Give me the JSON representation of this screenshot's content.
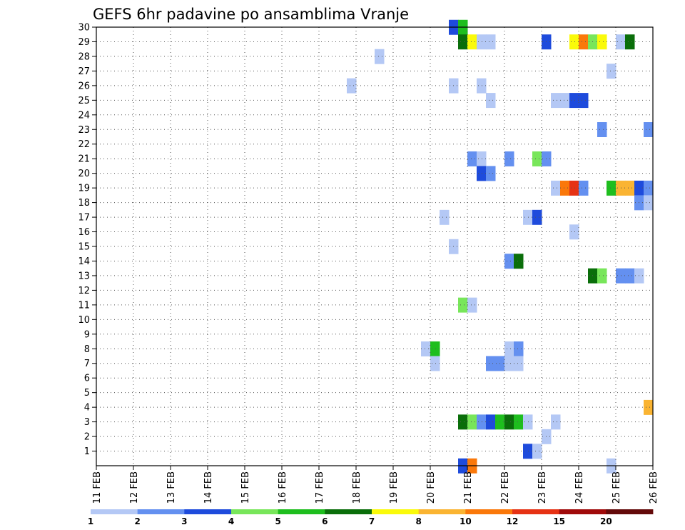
{
  "chart_data": {
    "type": "heatmap",
    "title": "GEFS 6hr padavine po ansamblima Vranje",
    "x_tick_labels": [
      "11 FEB",
      "12 FEB",
      "13 FEB",
      "14 FEB",
      "15 FEB",
      "16 FEB",
      "17 FEB",
      "18 FEB",
      "19 FEB",
      "20 FEB",
      "21 FEB",
      "22 FEB",
      "23 FEB",
      "24 FEB",
      "25 FEB",
      "26 FEB"
    ],
    "y_tick_labels": [
      "1",
      "2",
      "3",
      "4",
      "5",
      "6",
      "7",
      "8",
      "9",
      "10",
      "11",
      "12",
      "13",
      "14",
      "15",
      "16",
      "17",
      "18",
      "19",
      "20",
      "21",
      "22",
      "23",
      "24",
      "25",
      "26",
      "27",
      "28",
      "29",
      "30"
    ],
    "x_range": [
      "11 FEB",
      "26 FEB"
    ],
    "y_range": [
      0,
      30
    ],
    "grid": true,
    "step_hours": 6,
    "legend": {
      "placement": "bottom",
      "labels": [
        "1",
        "2",
        "3",
        "4",
        "5",
        "6",
        "7",
        "8",
        "10",
        "12",
        "15",
        "20"
      ],
      "colors": [
        "#b4c8f5",
        "#6490f0",
        "#1e4bdc",
        "#78e65a",
        "#1ebe1e",
        "#0a6e0a",
        "#fafa0a",
        "#fab432",
        "#fa780a",
        "#e63214",
        "#a00a0a",
        "#640a0a"
      ]
    },
    "cells": [
      {
        "day": 20.5,
        "member": 30,
        "level": 3
      },
      {
        "day": 20.75,
        "member": 30,
        "level": 5
      },
      {
        "day": 20.75,
        "member": 29,
        "level": 6
      },
      {
        "day": 21.0,
        "member": 29,
        "level": 7
      },
      {
        "day": 21.25,
        "member": 29,
        "level": 1
      },
      {
        "day": 21.5,
        "member": 29,
        "level": 1
      },
      {
        "day": 23.0,
        "member": 29,
        "level": 3
      },
      {
        "day": 23.75,
        "member": 29,
        "level": 7
      },
      {
        "day": 24.0,
        "member": 29,
        "level": 9
      },
      {
        "day": 24.25,
        "member": 29,
        "level": 4
      },
      {
        "day": 24.5,
        "member": 29,
        "level": 7
      },
      {
        "day": 25.0,
        "member": 29,
        "level": 1
      },
      {
        "day": 25.25,
        "member": 29,
        "level": 6
      },
      {
        "day": 18.5,
        "member": 28,
        "level": 1
      },
      {
        "day": 24.75,
        "member": 27,
        "level": 1
      },
      {
        "day": 17.75,
        "member": 26,
        "level": 1
      },
      {
        "day": 20.5,
        "member": 26,
        "level": 1
      },
      {
        "day": 21.25,
        "member": 26,
        "level": 1
      },
      {
        "day": 21.5,
        "member": 25,
        "level": 1
      },
      {
        "day": 23.25,
        "member": 25,
        "level": 1
      },
      {
        "day": 23.5,
        "member": 25,
        "level": 1
      },
      {
        "day": 23.75,
        "member": 25,
        "level": 3
      },
      {
        "day": 24.0,
        "member": 25,
        "level": 3
      },
      {
        "day": 24.5,
        "member": 23,
        "level": 2
      },
      {
        "day": 25.75,
        "member": 23,
        "level": 2
      },
      {
        "day": 21.0,
        "member": 21,
        "level": 2
      },
      {
        "day": 21.25,
        "member": 21,
        "level": 1
      },
      {
        "day": 22.0,
        "member": 21,
        "level": 2
      },
      {
        "day": 22.75,
        "member": 21,
        "level": 4
      },
      {
        "day": 23.0,
        "member": 21,
        "level": 2
      },
      {
        "day": 21.25,
        "member": 20,
        "level": 3
      },
      {
        "day": 21.5,
        "member": 20,
        "level": 2
      },
      {
        "day": 23.25,
        "member": 19,
        "level": 1
      },
      {
        "day": 23.5,
        "member": 19,
        "level": 9
      },
      {
        "day": 23.75,
        "member": 19,
        "level": 10
      },
      {
        "day": 24.0,
        "member": 19,
        "level": 2
      },
      {
        "day": 24.75,
        "member": 19,
        "level": 5
      },
      {
        "day": 25.0,
        "member": 19,
        "level": 8
      },
      {
        "day": 25.25,
        "member": 19,
        "level": 8
      },
      {
        "day": 25.5,
        "member": 19,
        "level": 3
      },
      {
        "day": 25.75,
        "member": 19,
        "level": 2
      },
      {
        "day": 25.5,
        "member": 18,
        "level": 2
      },
      {
        "day": 25.75,
        "member": 18,
        "level": 1
      },
      {
        "day": 20.25,
        "member": 17,
        "level": 1
      },
      {
        "day": 22.5,
        "member": 17,
        "level": 1
      },
      {
        "day": 22.75,
        "member": 17,
        "level": 3
      },
      {
        "day": 23.75,
        "member": 16,
        "level": 1
      },
      {
        "day": 20.5,
        "member": 15,
        "level": 1
      },
      {
        "day": 22.0,
        "member": 14,
        "level": 2
      },
      {
        "day": 22.25,
        "member": 14,
        "level": 6
      },
      {
        "day": 24.25,
        "member": 13,
        "level": 6
      },
      {
        "day": 24.5,
        "member": 13,
        "level": 4
      },
      {
        "day": 25.0,
        "member": 13,
        "level": 2
      },
      {
        "day": 25.25,
        "member": 13,
        "level": 2
      },
      {
        "day": 25.5,
        "member": 13,
        "level": 1
      },
      {
        "day": 20.75,
        "member": 11,
        "level": 4
      },
      {
        "day": 21.0,
        "member": 11,
        "level": 1
      },
      {
        "day": 19.75,
        "member": 8,
        "level": 1
      },
      {
        "day": 20.0,
        "member": 8,
        "level": 5
      },
      {
        "day": 22.0,
        "member": 8,
        "level": 1
      },
      {
        "day": 22.25,
        "member": 8,
        "level": 2
      },
      {
        "day": 20.0,
        "member": 7,
        "level": 1
      },
      {
        "day": 21.5,
        "member": 7,
        "level": 2
      },
      {
        "day": 21.75,
        "member": 7,
        "level": 2
      },
      {
        "day": 22.0,
        "member": 7,
        "level": 1
      },
      {
        "day": 22.25,
        "member": 7,
        "level": 1
      },
      {
        "day": 25.75,
        "member": 4,
        "level": 8
      },
      {
        "day": 20.75,
        "member": 3,
        "level": 6
      },
      {
        "day": 21.0,
        "member": 3,
        "level": 4
      },
      {
        "day": 21.25,
        "member": 3,
        "level": 2
      },
      {
        "day": 21.5,
        "member": 3,
        "level": 3
      },
      {
        "day": 21.75,
        "member": 3,
        "level": 5
      },
      {
        "day": 22.0,
        "member": 3,
        "level": 6
      },
      {
        "day": 22.25,
        "member": 3,
        "level": 5
      },
      {
        "day": 22.5,
        "member": 3,
        "level": 1
      },
      {
        "day": 23.25,
        "member": 3,
        "level": 1
      },
      {
        "day": 23.0,
        "member": 2,
        "level": 1
      },
      {
        "day": 22.5,
        "member": 1,
        "level": 3
      },
      {
        "day": 22.75,
        "member": 1,
        "level": 1
      },
      {
        "day": 20.75,
        "member": 0,
        "level": 3
      },
      {
        "day": 21.0,
        "member": 0,
        "level": 9
      },
      {
        "day": 24.75,
        "member": 0,
        "level": 1
      }
    ]
  }
}
